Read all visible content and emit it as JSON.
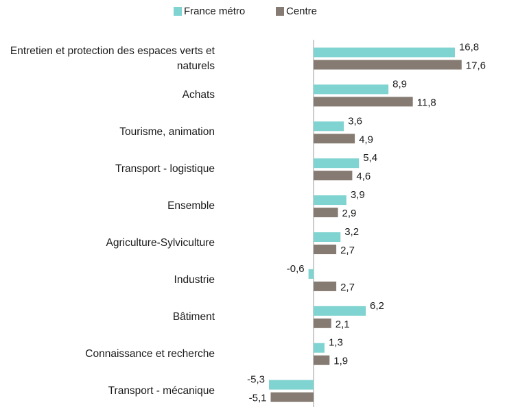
{
  "chart_data": {
    "type": "bar",
    "orientation": "horizontal",
    "categories": [
      "Entretien et protection des espaces verts et naturels",
      "Achats",
      "Tourisme, animation",
      "Transport - logistique",
      "Ensemble",
      "Agriculture-Sylviculture",
      "Industrie",
      "Bâtiment",
      "Connaissance et recherche",
      "Transport - mécanique"
    ],
    "series": [
      {
        "name": "France métro",
        "color": "#7fd3d0",
        "values": [
          16.8,
          8.9,
          3.6,
          5.4,
          3.9,
          3.2,
          -0.6,
          6.2,
          1.3,
          -5.3
        ],
        "value_labels": [
          "16,8",
          "8,9",
          "3,6",
          "5,4",
          "3,9",
          "3,2",
          "-0,6",
          "6,2",
          "1,3",
          "-5,3"
        ]
      },
      {
        "name": "Centre",
        "color": "#857b72",
        "values": [
          17.6,
          11.8,
          4.9,
          4.6,
          2.9,
          2.7,
          2.7,
          2.1,
          1.9,
          -5.1
        ],
        "value_labels": [
          "17,6",
          "11,8",
          "4,9",
          "4,6",
          "2,9",
          "2,7",
          "2,7",
          "2,1",
          "1,9",
          "-5,1"
        ]
      }
    ],
    "legend": "top"
  }
}
